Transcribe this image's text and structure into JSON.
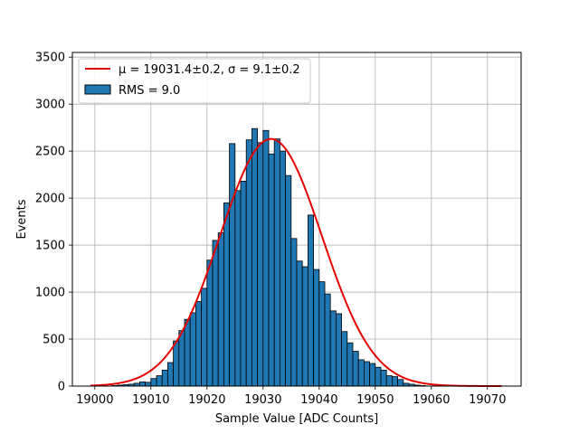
{
  "chart_data": {
    "type": "bar",
    "xlabel": "Sample Value [ADC Counts]",
    "ylabel": "Events",
    "xlim": [
      18996,
      19076
    ],
    "ylim": [
      0,
      3550
    ],
    "xticks": [
      19000,
      19010,
      19020,
      19030,
      19040,
      19050,
      19060,
      19070
    ],
    "yticks": [
      0,
      500,
      1000,
      1500,
      2000,
      2500,
      3000,
      3500
    ],
    "grid": true,
    "legend_position": "top-left",
    "histogram": {
      "name": "RMS = 9.0",
      "color": "#1f77b4",
      "edge_color": "#000000",
      "bin_width": 1,
      "bin_starts": [
        19003,
        19004,
        19005,
        19006,
        19007,
        19008,
        19009,
        19010,
        19011,
        19012,
        19013,
        19014,
        19015,
        19016,
        19017,
        19018,
        19019,
        19020,
        19021,
        19022,
        19023,
        19024,
        19025,
        19026,
        19027,
        19028,
        19029,
        19030,
        19031,
        19032,
        19033,
        19034,
        19035,
        19036,
        19037,
        19038,
        19039,
        19040,
        19041,
        19042,
        19043,
        19044,
        19045,
        19046,
        19047,
        19048,
        19049,
        19050,
        19051,
        19052,
        19053,
        19054,
        19055,
        19056,
        19057,
        19058
      ],
      "counts": [
        5,
        10,
        15,
        20,
        30,
        45,
        40,
        80,
        110,
        170,
        250,
        480,
        590,
        710,
        780,
        900,
        1040,
        1340,
        1550,
        1630,
        1950,
        2580,
        2080,
        2180,
        2620,
        2740,
        2590,
        2720,
        2470,
        2630,
        2500,
        2240,
        1570,
        1330,
        1270,
        1820,
        1240,
        1110,
        980,
        800,
        770,
        580,
        460,
        370,
        280,
        260,
        240,
        200,
        170,
        110,
        100,
        70,
        30,
        20,
        10,
        5
      ]
    },
    "fit": {
      "name": "μ = 19031.4±0.2, σ = 9.1±0.2",
      "mu": 19031.4,
      "sigma": 9.1,
      "amplitude": 2630,
      "x_range": [
        18999.2,
        19072.5
      ],
      "color": "#e60000"
    }
  }
}
